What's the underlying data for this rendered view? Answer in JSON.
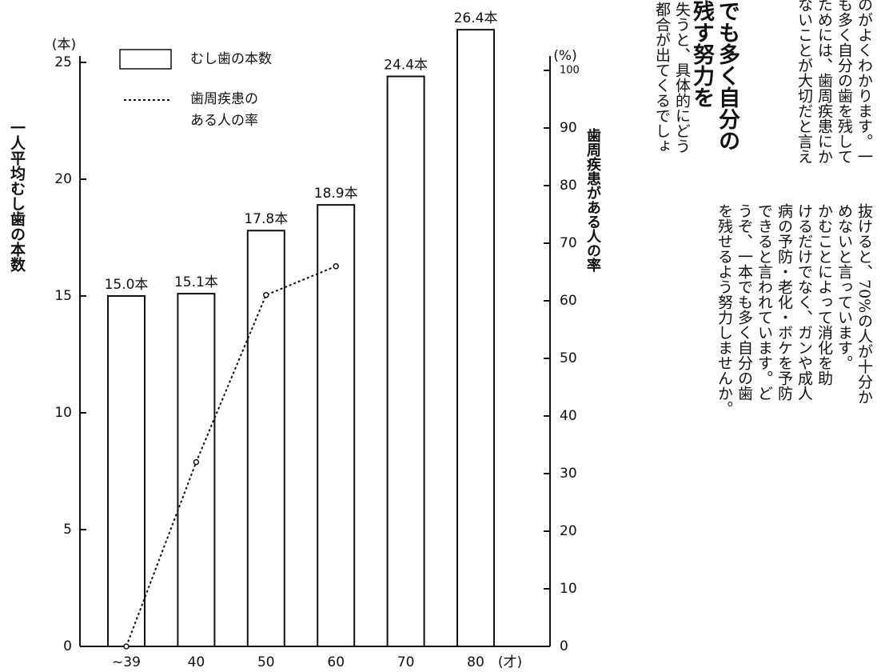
{
  "chart_data": {
    "type": "bar",
    "categories": [
      "~39",
      "40",
      "50",
      "60",
      "70",
      "80"
    ],
    "series": [
      {
        "name": "むし歯の本数",
        "type": "bar",
        "color": "#ffffff",
        "values": [
          15.0,
          15.1,
          17.8,
          18.9,
          24.4,
          26.4
        ],
        "value_labels": [
          "15.0本",
          "15.1本",
          "17.8本",
          "18.9本",
          "24.4本",
          "26.4本"
        ]
      },
      {
        "name": "歯周疾患のある人の率",
        "type": "line",
        "axis": "y2",
        "color": "#111111",
        "values": [
          0,
          32,
          61,
          66,
          null,
          null
        ]
      }
    ],
    "ylim": [
      0,
      25
    ],
    "yticks": [
      0,
      5,
      10,
      15,
      20,
      25
    ],
    "y2lim": [
      0,
      100
    ],
    "y2ticks": [
      0,
      10,
      20,
      30,
      40,
      50,
      60,
      70,
      80,
      90,
      100
    ],
    "y_unit": "(本)",
    "y2_unit": "(%)",
    "x_unit": "(才)",
    "ylabel": "一人平均むし歯の本数",
    "y2label": "歯周疾患がある人の率"
  },
  "article": {
    "top_columns": [
      "のがよくわかります。一",
      "も多く自分の歯を残して",
      "ためには、歯周疾患にか",
      "ないことが大切だと言え"
    ],
    "heading": [
      "でも多く自分の",
      "残す努力を"
    ],
    "middle_columns": [
      "失うと、具体的にどう",
      "都合が出てくるでしょ"
    ],
    "bottom_columns": [
      "抜けると、70%の人が十分か",
      "めないと言っています。",
      "かむことによって消化を助",
      "けるだけでなく、ガンや成人",
      "病の予防・老化・ボケを予防",
      "できると言われています。ど",
      "うぞ、一本でも多く自分の歯",
      "を残せるよう努力しませんか。"
    ]
  }
}
